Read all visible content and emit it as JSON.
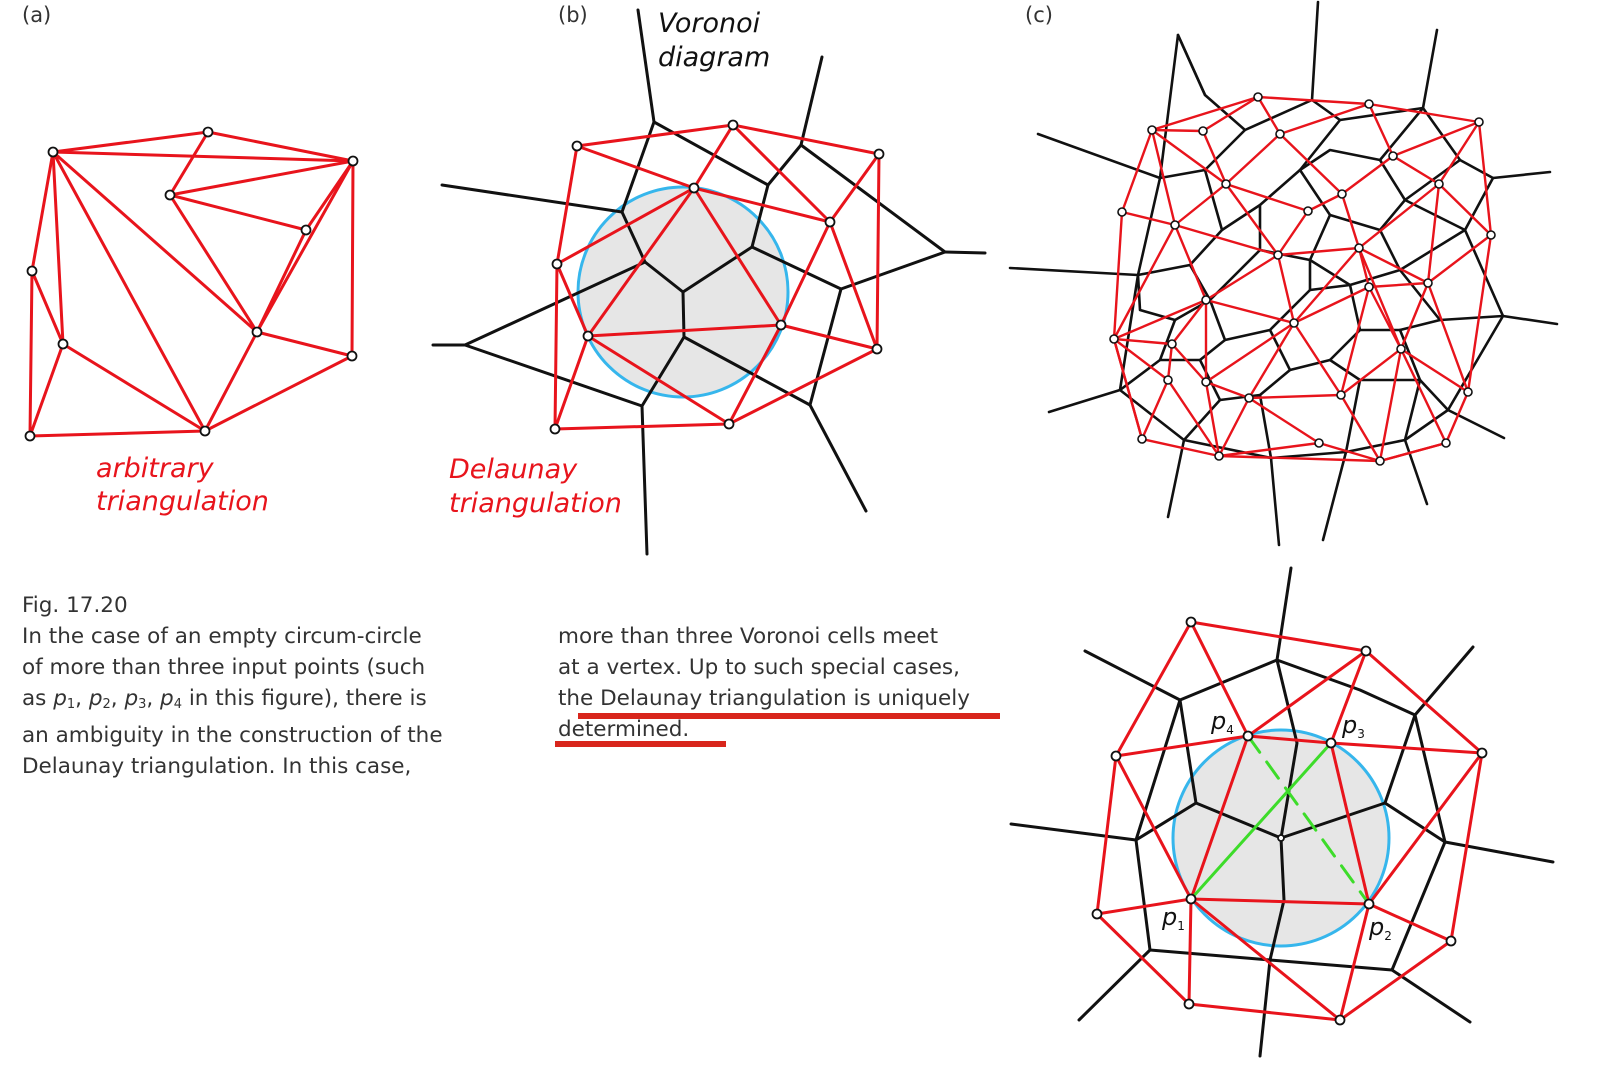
{
  "panels": {
    "a": {
      "label": "(a)",
      "caption_line1": "arbitrary",
      "caption_line2": "triangulation"
    },
    "b": {
      "label": "(b)",
      "title_line1": "Voronoi",
      "title_line2": "diagram",
      "caption_line1": "Delaunay",
      "caption_line2": "triangulation"
    },
    "c": {
      "label": "(c)"
    }
  },
  "points": {
    "p1": "p",
    "p1_sub": "1",
    "p2": "p",
    "p2_sub": "2",
    "p3": "p",
    "p3_sub": "3",
    "p4": "p",
    "p4_sub": "4"
  },
  "caption": {
    "figure_number": "Fig. 17.20",
    "left_line1": "In the case of an empty circum-circle",
    "left_line2": "of more than three input points (such",
    "left_line3_as": "as ",
    "p": "p",
    "sub1": "1",
    "sub2": "2",
    "sub3": "3",
    "sub4": "4",
    "comma": ", ",
    "left_line3_rest": " in this figure), there is",
    "left_line4": "an ambiguity in the construction of the",
    "left_line5": "Delaunay triangulation. In this case,",
    "right_line1": "more than three Voronoi cells meet",
    "right_line2": "at a vertex. Up to such special cases,",
    "right_line3": "the Delaunay triangulation is uniquely",
    "right_line4": "determined."
  },
  "colors": {
    "delaunay": "#e8141c",
    "voronoi": "#111111",
    "circumcircle": "#36b6ec",
    "circle_fill": "#e6e6e6",
    "alternate_diagonal": "#3ddc2a",
    "highlight_underline": "#d8261c"
  },
  "icons": {
    "vertex": "open-circle-vertex"
  }
}
